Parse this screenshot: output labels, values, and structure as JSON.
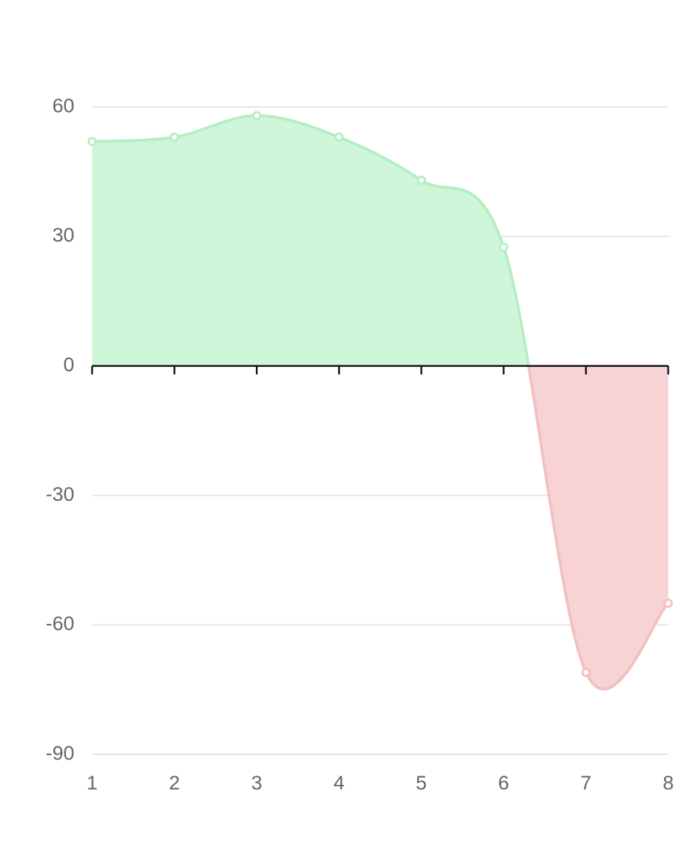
{
  "chart_data": {
    "type": "area",
    "x": [
      1,
      2,
      3,
      4,
      5,
      6,
      7,
      8
    ],
    "values": [
      52,
      53,
      58,
      53,
      43,
      27.5,
      -71,
      -55
    ],
    "positive_color": "#b5eec3",
    "positive_fill": "#cff6d8",
    "negative_color": "#f4bfc1",
    "negative_fill": "#f7d3d5",
    "xlim": [
      1,
      8
    ],
    "xticks": [
      1,
      2,
      3,
      4,
      5,
      6,
      7,
      8
    ],
    "ylim": [
      -90,
      60
    ],
    "yticks": [
      -90,
      -60,
      -30,
      0,
      30,
      60
    ],
    "grid": true,
    "smooth": true
  }
}
